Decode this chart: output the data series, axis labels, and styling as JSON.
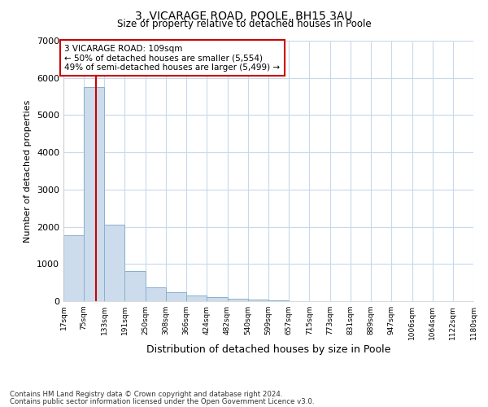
{
  "title_line1": "3, VICARAGE ROAD, POOLE, BH15 3AU",
  "title_line2": "Size of property relative to detached houses in Poole",
  "xlabel": "Distribution of detached houses by size in Poole",
  "ylabel": "Number of detached properties",
  "footer_line1": "Contains HM Land Registry data © Crown copyright and database right 2024.",
  "footer_line2": "Contains public sector information licensed under the Open Government Licence v3.0.",
  "annotation_line1": "3 VICARAGE ROAD: 109sqm",
  "annotation_line2": "← 50% of detached houses are smaller (5,554)",
  "annotation_line3": "49% of semi-detached houses are larger (5,499) →",
  "bar_edges": [
    17,
    75,
    133,
    191,
    250,
    308,
    366,
    424,
    482,
    540,
    599,
    657,
    715,
    773,
    831,
    889,
    947,
    1006,
    1064,
    1122,
    1180
  ],
  "bar_heights": [
    1780,
    5750,
    2050,
    820,
    370,
    235,
    155,
    105,
    65,
    35,
    20,
    10,
    5,
    3,
    2,
    1,
    1,
    1,
    1,
    1
  ],
  "bar_color": "#ccdcec",
  "bar_edge_color": "#8ab0cc",
  "vline_x": 109,
  "vline_color": "#cc0000",
  "ylim": [
    0,
    7000
  ],
  "yticks": [
    0,
    1000,
    2000,
    3000,
    4000,
    5000,
    6000,
    7000
  ],
  "annotation_box_color": "#cc0000",
  "grid_color": "#c8d8ec",
  "background_color": "#ffffff",
  "tick_labels": [
    "17sqm",
    "75sqm",
    "133sqm",
    "191sqm",
    "250sqm",
    "308sqm",
    "366sqm",
    "424sqm",
    "482sqm",
    "540sqm",
    "599sqm",
    "657sqm",
    "715sqm",
    "773sqm",
    "831sqm",
    "889sqm",
    "947sqm",
    "1006sqm",
    "1064sqm",
    "1122sqm",
    "1180sqm"
  ]
}
